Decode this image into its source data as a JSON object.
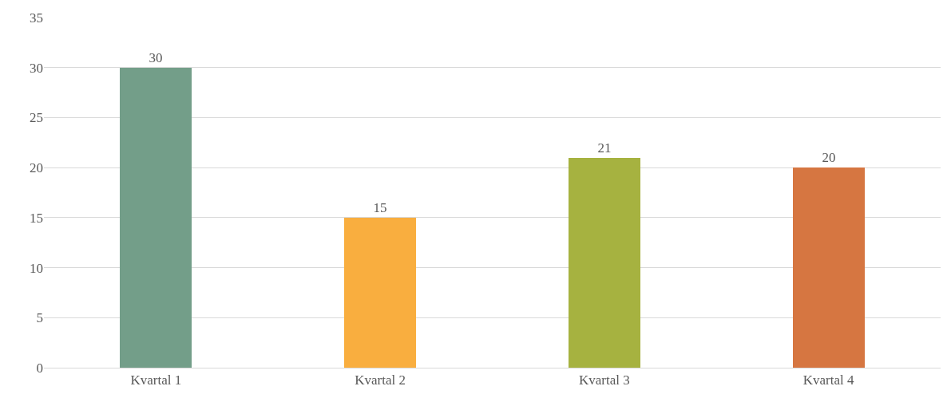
{
  "chart_data": {
    "type": "bar",
    "categories": [
      "Kvartal 1",
      "Kvartal 2",
      "Kvartal 3",
      "Kvartal 4"
    ],
    "values": [
      30,
      15,
      21,
      20
    ],
    "colors": [
      "#739e89",
      "#f9ae3f",
      "#a6b240",
      "#d67641"
    ],
    "ylim": [
      0,
      35
    ],
    "yticks": [
      0,
      5,
      10,
      15,
      20,
      25,
      30,
      35
    ],
    "grid": "y",
    "data_labels": true,
    "legend": false
  }
}
